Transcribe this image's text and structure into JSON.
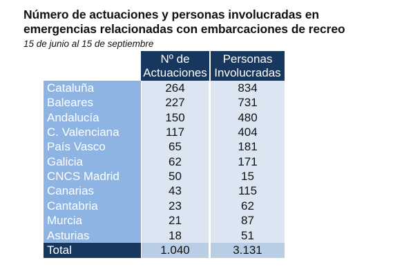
{
  "title": "Número de actuaciones y personas involucradas en emergencias relacionadas con embarcaciones de recreo",
  "subtitle": "15 de junio al 15 de septiembre",
  "table": {
    "headers": {
      "actuaciones_line1": "Nº de",
      "actuaciones_line2": "Actuaciones",
      "personas_line1": "Personas",
      "personas_line2": "Involucradas"
    },
    "rows": [
      {
        "region": "Cataluña",
        "actuaciones": "264",
        "personas": "834"
      },
      {
        "region": "Baleares",
        "actuaciones": "227",
        "personas": "731"
      },
      {
        "region": "Andalucía",
        "actuaciones": "150",
        "personas": "480"
      },
      {
        "region": "C. Valenciana",
        "actuaciones": "117",
        "personas": "404"
      },
      {
        "region": "País Vasco",
        "actuaciones": "65",
        "personas": "181"
      },
      {
        "region": "Galicia",
        "actuaciones": "62",
        "personas": "171"
      },
      {
        "region": "CNCS Madrid",
        "actuaciones": "50",
        "personas": "15"
      },
      {
        "region": "Canarias",
        "actuaciones": "43",
        "personas": "115"
      },
      {
        "region": "Cantabria",
        "actuaciones": "23",
        "personas": "62"
      },
      {
        "region": "Murcia",
        "actuaciones": "21",
        "personas": "87"
      },
      {
        "region": "Asturias",
        "actuaciones": "18",
        "personas": "51"
      }
    ],
    "total": {
      "label": "Total",
      "actuaciones": "1.040",
      "personas": "3.131"
    }
  },
  "colors": {
    "header_bg": "#17375e",
    "region_col_bg": "#8eb4e3",
    "value_col_bg": "#dce6f2",
    "total_value_bg": "#b9cde5"
  }
}
